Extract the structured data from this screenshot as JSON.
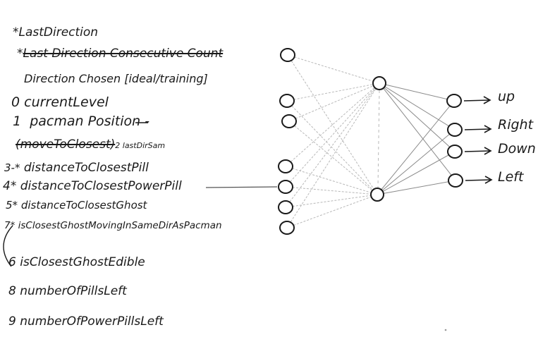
{
  "inputs": [
    {
      "id": "lastDirection",
      "prefix": "*",
      "label": "LastDirection",
      "struck": false
    },
    {
      "id": "lastDirectionConsecutiveCount",
      "prefix": "*",
      "label": "Last Direction Consecutive Count",
      "struck": true
    },
    {
      "id": "directionChosen",
      "prefix": "",
      "label": "Direction Chosen [ideal/training]",
      "struck": false
    },
    {
      "id": "currentLevel",
      "prefix": "0",
      "label": "currentLevel",
      "struck": false
    },
    {
      "id": "pacmanPosition",
      "prefix": "1",
      "label": "pacman Position -",
      "struck": false
    },
    {
      "id": "moveToClosest",
      "prefix": "",
      "label": "(moveToClosest)",
      "struck": true,
      "note": "2 lastDirSam"
    },
    {
      "id": "distanceToClosestPill",
      "prefix": "3-*",
      "label": "distanceToClosestPill",
      "struck": false
    },
    {
      "id": "distanceToClosestPowerPill",
      "prefix": "4*",
      "label": "distanceToClosestPowerPill",
      "struck": false
    },
    {
      "id": "distanceToClosestGhost",
      "prefix": "5*",
      "label": "distanceToClosestGhost",
      "struck": false
    },
    {
      "id": "isClosestGhostMovingInSameDir",
      "prefix": "7*",
      "label": "isClosestGhostMovingInSameDirAsPacman",
      "struck": false
    },
    {
      "id": "isClosestGhostEdible",
      "prefix": "6",
      "label": "isClosestGhostEdible",
      "struck": false
    },
    {
      "id": "numberOfPillsLeft",
      "prefix": "8",
      "label": "numberOfPillsLeft",
      "struck": false
    },
    {
      "id": "numberOfPowerPillsLeft",
      "prefix": "9",
      "label": "numberOfPowerPillsLeft",
      "struck": false
    }
  ],
  "outputs": [
    {
      "id": "up",
      "label": "up"
    },
    {
      "id": "right",
      "label": "Right"
    },
    {
      "id": "down",
      "label": "Down"
    },
    {
      "id": "left",
      "label": "Left"
    }
  ],
  "network": {
    "input_nodes": 7,
    "hidden_nodes": 2,
    "output_nodes": 4
  },
  "colors": {
    "ink": "#1a1a1a",
    "pencil": "#b8b8b8",
    "background": "#ffffff"
  }
}
